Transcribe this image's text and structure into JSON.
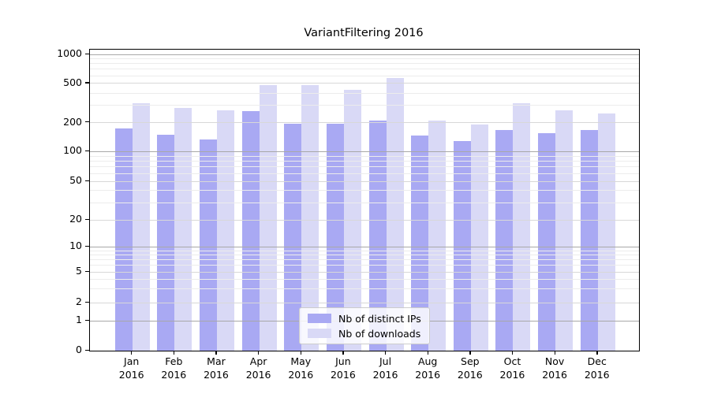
{
  "chart_data": {
    "type": "bar",
    "title": "VariantFiltering 2016",
    "categories": [
      "Jan 2016",
      "Feb 2016",
      "Mar 2016",
      "Apr 2016",
      "May 2016",
      "Jun 2016",
      "Jul 2016",
      "Aug 2016",
      "Sep 2016",
      "Oct 2016",
      "Nov 2016",
      "Dec 2016"
    ],
    "x_months": [
      "Jan",
      "Feb",
      "Mar",
      "Apr",
      "May",
      "Jun",
      "Jul",
      "Aug",
      "Sep",
      "Oct",
      "Nov",
      "Dec"
    ],
    "x_year": "2016",
    "series": [
      {
        "name": "Nb of distinct IPs",
        "color": "#a9a9f3",
        "values": [
          173,
          150,
          135,
          260,
          196,
          196,
          212,
          147,
          130,
          168,
          155,
          168
        ]
      },
      {
        "name": "Nb of downloads",
        "color": "#d9d9f6",
        "values": [
          315,
          283,
          265,
          480,
          482,
          432,
          570,
          211,
          190,
          315,
          268,
          250
        ]
      }
    ],
    "yscale": "symlog",
    "ylim": [
      0,
      1000
    ],
    "yticks": [
      0,
      1,
      2,
      5,
      10,
      20,
      50,
      100,
      200,
      500,
      1000
    ],
    "ytick_labels": [
      "0",
      "1",
      "2",
      "5",
      "10",
      "20",
      "50",
      "100",
      "200",
      "500",
      "1000"
    ],
    "minor_gridlines": [
      3,
      4,
      6,
      7,
      8,
      9,
      30,
      40,
      60,
      70,
      80,
      90,
      300,
      400,
      600,
      700,
      800,
      900
    ],
    "mid_gridlines": [
      2,
      5,
      20,
      50,
      200,
      500
    ],
    "major_gridlines": [
      1,
      10,
      100,
      1000
    ],
    "grid": true,
    "legend_position": "lower center",
    "xlabel": "",
    "ylabel": ""
  },
  "legend": {
    "items": [
      {
        "label": "Nb of distinct IPs",
        "color": "#a9a9f3"
      },
      {
        "label": "Nb of downloads",
        "color": "#d9d9f6"
      }
    ]
  },
  "colors": {
    "bar_dark": "#a9a9f3",
    "bar_light": "#d9d9f6",
    "grid_major": "#a8a8a8",
    "grid_mid": "#d8d8d8",
    "grid_minor": "#ececec",
    "axis": "#000000",
    "background": "#ffffff"
  }
}
